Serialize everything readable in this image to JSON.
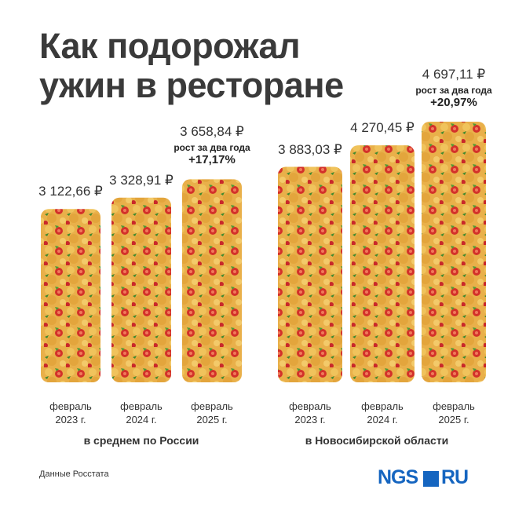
{
  "title": "Как подорожал ужин в ресторане",
  "source": "Данные Росстата",
  "logo": {
    "left": "NGS",
    "right": "RU"
  },
  "chart_data": [
    {
      "type": "bar",
      "group_label": "в среднем по России",
      "categories": [
        "февраль 2023 г.",
        "февраль 2024 г.",
        "февраль 2025 г."
      ],
      "values": [
        3122.66,
        3328.91,
        3658.84
      ],
      "value_labels": [
        "3 122,66 ₽",
        "3 328,91 ₽",
        "3 658,84 ₽"
      ],
      "annotations": [
        "рост за два года",
        "+17,17%"
      ]
    },
    {
      "type": "bar",
      "group_label": "в Новосибирской области",
      "categories": [
        "февраль 2023 г.",
        "февраль 2024 г.",
        "февраль 2025 г."
      ],
      "values": [
        3883.03,
        4270.45,
        4697.11
      ],
      "value_labels": [
        "3 883,03 ₽",
        "4 270,45 ₽",
        "4 697,11 ₽"
      ],
      "annotations": [
        "рост за два года",
        "+20,97%"
      ]
    }
  ]
}
